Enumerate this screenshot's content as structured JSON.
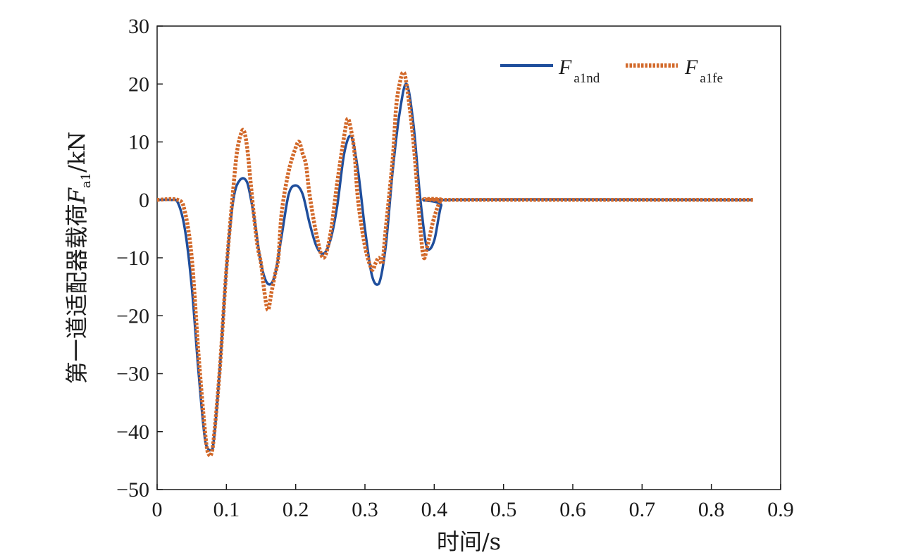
{
  "chart_data": {
    "type": "line",
    "xlabel": "时间/s",
    "ylabel": {
      "prefix": "第一道适配器载荷",
      "symbol": "F",
      "subscript": "a1",
      "suffix": "/kN"
    },
    "xlim": [
      0,
      0.9
    ],
    "ylim": [
      -50,
      30
    ],
    "x_ticks": [
      0,
      0.1,
      0.2,
      0.3,
      0.4,
      0.5,
      0.6,
      0.7,
      0.8,
      0.9
    ],
    "x_tick_labels": [
      "0",
      "0.1",
      "0.2",
      "0.3",
      "0.4",
      "0.5",
      "0.6",
      "0.7",
      "0.8",
      "0.9"
    ],
    "y_ticks": [
      30,
      20,
      10,
      0,
      -10,
      -20,
      -30,
      -40,
      -50
    ],
    "y_tick_labels": [
      "30",
      "20",
      "10",
      "0",
      "−10",
      "−20",
      "−30",
      "−40",
      "−50"
    ],
    "grid": false,
    "legend_position": "top-right",
    "series": [
      {
        "name": "F",
        "name_sub": "a1nd",
        "color": "#1f4e9c",
        "style": "solid",
        "x": [
          0,
          0.02,
          0.03,
          0.04,
          0.05,
          0.06,
          0.07,
          0.08,
          0.09,
          0.1,
          0.11,
          0.12,
          0.13,
          0.14,
          0.15,
          0.16,
          0.17,
          0.18,
          0.19,
          0.2,
          0.21,
          0.22,
          0.23,
          0.24,
          0.25,
          0.26,
          0.27,
          0.28,
          0.29,
          0.3,
          0.31,
          0.32,
          0.33,
          0.34,
          0.35,
          0.36,
          0.37,
          0.38,
          0.39,
          0.4,
          0.41,
          0.42,
          0.86
        ],
        "y": [
          0,
          0,
          -0.5,
          -5,
          -15,
          -30,
          -42,
          -43,
          -30,
          -12,
          0,
          3.5,
          3,
          -3,
          -11,
          -14.5,
          -13,
          -6,
          1,
          2.5,
          1,
          -4,
          -8,
          -9.3,
          -7,
          -1,
          8,
          11,
          5,
          -5,
          -13,
          -14.5,
          -8,
          5,
          15,
          20,
          13,
          0,
          -8.5,
          -7,
          -1,
          0,
          0
        ]
      },
      {
        "name": "F",
        "name_sub": "a1fe",
        "color": "#d2692a",
        "style": "dotted",
        "x": [
          0,
          0.03,
          0.04,
          0.05,
          0.06,
          0.07,
          0.075,
          0.08,
          0.09,
          0.1,
          0.11,
          0.115,
          0.12,
          0.125,
          0.13,
          0.135,
          0.14,
          0.145,
          0.15,
          0.155,
          0.16,
          0.165,
          0.17,
          0.175,
          0.18,
          0.19,
          0.2,
          0.205,
          0.21,
          0.215,
          0.22,
          0.23,
          0.24,
          0.25,
          0.26,
          0.27,
          0.275,
          0.28,
          0.285,
          0.29,
          0.3,
          0.31,
          0.315,
          0.32,
          0.325,
          0.33,
          0.34,
          0.345,
          0.35,
          0.355,
          0.36,
          0.37,
          0.38,
          0.385,
          0.39,
          0.4,
          0.41,
          0.42,
          0.86
        ],
        "y": [
          0,
          0,
          -2,
          -10,
          -27,
          -41,
          -44,
          -43,
          -30,
          -12,
          2,
          8,
          11,
          12,
          9,
          3,
          -3,
          -8,
          -11,
          -16,
          -19,
          -16,
          -13,
          -10,
          -2,
          5,
          9,
          10,
          8,
          6,
          1,
          -6,
          -10,
          -6,
          3,
          11,
          14,
          12,
          8,
          0,
          -8,
          -12,
          -11,
          -10,
          -11,
          -5,
          7,
          16,
          20,
          22,
          20,
          10,
          -5,
          -10,
          -8,
          -3,
          0,
          0,
          0
        ]
      }
    ]
  }
}
